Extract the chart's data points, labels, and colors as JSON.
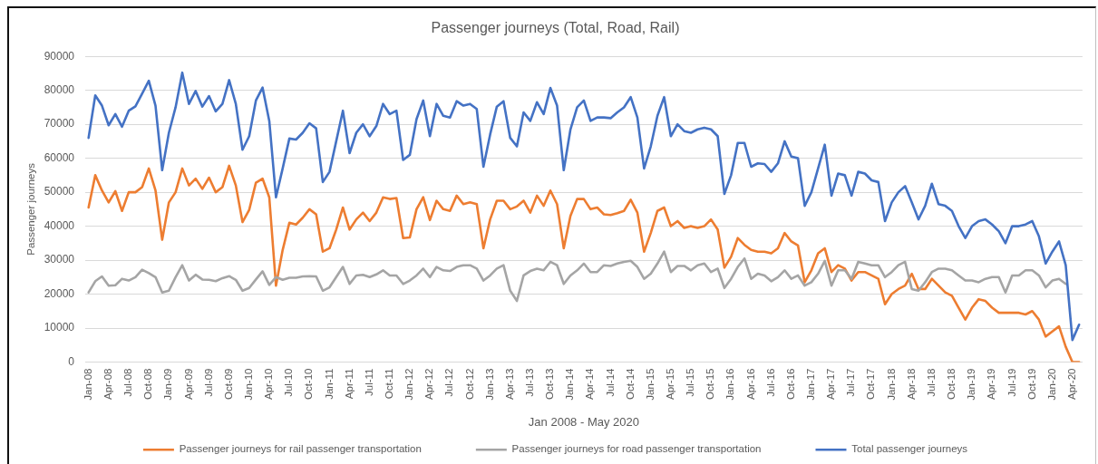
{
  "chart_data": {
    "type": "line",
    "title": "Passenger journeys (Total, Road, Rail)",
    "xlabel": "Jan 2008 - May 2020",
    "ylabel": "Passenger journeys",
    "categories": [
      "Jan-08",
      null,
      null,
      "Apr-08",
      null,
      null,
      "Jul-08",
      null,
      null,
      "Oct-08",
      null,
      null,
      "Jan-09",
      null,
      null,
      "Apr-09",
      null,
      null,
      "Jul-09",
      null,
      null,
      "Oct-09",
      null,
      null,
      "Jan-10",
      null,
      null,
      "Apr-10",
      null,
      null,
      "Jul-10",
      null,
      null,
      "Oct-10",
      null,
      null,
      "Jan-11",
      null,
      null,
      "Apr-11",
      null,
      null,
      "Jul-11",
      null,
      null,
      "Oct-11",
      null,
      null,
      "Jan-12",
      null,
      null,
      "Apr-12",
      null,
      null,
      "Jul-12",
      null,
      null,
      "Oct-12",
      null,
      null,
      "Jan-13",
      null,
      null,
      "Apr-13",
      null,
      null,
      "Jul-13",
      null,
      null,
      "Oct-13",
      null,
      null,
      "Jan-14",
      null,
      null,
      "Apr-14",
      null,
      null,
      "Jul-14",
      null,
      null,
      "Oct-14",
      null,
      null,
      "Jan-15",
      null,
      null,
      "Apr-15",
      null,
      null,
      "Jul-15",
      null,
      null,
      "Oct-15",
      null,
      null,
      "Jan-16",
      null,
      null,
      "Apr-16",
      null,
      null,
      "Jul-16",
      null,
      null,
      "Oct-16",
      null,
      null,
      "Jan-17",
      null,
      null,
      "Apr-17",
      null,
      null,
      "Jul-17",
      null,
      null,
      "Oct-17",
      null,
      null,
      "Jan-18",
      null,
      null,
      "Apr-18",
      null,
      null,
      "Jul-18",
      null,
      null,
      "Oct-18",
      null,
      null,
      "Jan-19",
      null,
      null,
      "Apr-19",
      null,
      null,
      "Jul-19",
      null,
      null,
      "Oct-19",
      null,
      null,
      "Jan-20",
      null,
      null,
      "Apr-20",
      null
    ],
    "series": [
      {
        "name": "Passenger journeys for rail passenger transportation",
        "color": "#ed7d31",
        "values": [
          45500,
          55000,
          50500,
          47000,
          50300,
          44500,
          50000,
          50000,
          51500,
          57000,
          50500,
          36000,
          47000,
          50000,
          57000,
          52000,
          54000,
          51000,
          54300,
          50000,
          51500,
          57800,
          52000,
          41200,
          44800,
          52800,
          54000,
          48500,
          22500,
          33000,
          41000,
          40500,
          42500,
          45000,
          43500,
          32500,
          33500,
          39000,
          45500,
          39000,
          42000,
          44000,
          41500,
          44000,
          48500,
          48000,
          48300,
          36500,
          36700,
          45000,
          48500,
          41800,
          47500,
          45000,
          44500,
          49000,
          46500,
          47000,
          46500,
          33500,
          42000,
          47500,
          47500,
          45000,
          45800,
          47500,
          44000,
          49000,
          46000,
          50500,
          46500,
          33500,
          43000,
          48000,
          48000,
          45000,
          45500,
          43500,
          43300,
          43800,
          44500,
          47800,
          44000,
          32500,
          38000,
          44500,
          45500,
          40000,
          41500,
          39500,
          40000,
          39500,
          40000,
          42000,
          39000,
          27800,
          31000,
          36500,
          34500,
          33000,
          32500,
          32500,
          32000,
          33500,
          38000,
          35500,
          34300,
          23500,
          27000,
          32000,
          33500,
          26500,
          28500,
          27500,
          24000,
          26500,
          26500,
          25500,
          24500,
          17000,
          20000,
          21500,
          22500,
          26000,
          21500,
          21500,
          24500,
          22500,
          20500,
          19500,
          16000,
          12500,
          16000,
          18500,
          18000,
          16000,
          14500,
          14500,
          14500,
          14500,
          14000,
          15000,
          12500,
          7500,
          9000,
          10500,
          4500,
          0,
          0
        ]
      },
      {
        "name": "Passenger journeys for road passenger transportation",
        "color": "#a5a5a5",
        "values": [
          20500,
          23800,
          25200,
          22500,
          22600,
          24500,
          24000,
          25000,
          27200,
          26200,
          25000,
          20500,
          21000,
          25000,
          28500,
          24000,
          25700,
          24300,
          24200,
          23800,
          24700,
          25300,
          24200,
          21000,
          21800,
          24300,
          26700,
          22700,
          25000,
          24200,
          24800,
          24800,
          25200,
          25300,
          25200,
          21000,
          22000,
          25000,
          28000,
          23000,
          25500,
          25700,
          25000,
          25800,
          27000,
          25500,
          25500,
          23000,
          24000,
          25500,
          27500,
          25000,
          28000,
          27000,
          26800,
          28000,
          28500,
          28500,
          27500,
          24000,
          25500,
          27500,
          28500,
          21000,
          18000,
          25500,
          26800,
          27500,
          27000,
          29500,
          28500,
          23000,
          25500,
          27000,
          29000,
          26500,
          26500,
          28500,
          28300,
          29000,
          29500,
          29800,
          28000,
          24500,
          26000,
          29000,
          32500,
          26500,
          28300,
          28300,
          27000,
          28500,
          29000,
          26500,
          27500,
          21800,
          24500,
          28000,
          30500,
          24500,
          26000,
          25500,
          23800,
          25000,
          27000,
          24500,
          25500,
          22500,
          23500,
          26000,
          29800,
          22500,
          27000,
          27000,
          24500,
          29500,
          29000,
          28500,
          28500,
          25000,
          26500,
          28500,
          29500,
          21500,
          21000,
          23500,
          26500,
          27500,
          27500,
          27000,
          25500,
          24000,
          24000,
          23500,
          24500,
          25000,
          25000,
          20500,
          25500,
          25500,
          27000,
          27000,
          25500,
          22000,
          24000,
          24500,
          23000,
          null,
          null
        ]
      },
      {
        "name": "Total passenger journeys",
        "color": "#4472c4",
        "values": [
          66000,
          78500,
          75500,
          69700,
          73000,
          69300,
          74000,
          75300,
          79000,
          82800,
          75500,
          56500,
          67500,
          75000,
          85200,
          76000,
          79800,
          75200,
          78300,
          73800,
          76000,
          83000,
          76000,
          62500,
          66500,
          77000,
          80800,
          71000,
          48500,
          57000,
          65800,
          65500,
          67500,
          70300,
          68800,
          53000,
          56000,
          65000,
          74000,
          61500,
          67500,
          70000,
          66500,
          69500,
          76000,
          73000,
          74000,
          59500,
          61000,
          71500,
          77000,
          66500,
          76000,
          72500,
          72000,
          76800,
          75500,
          76000,
          74500,
          57500,
          67000,
          75200,
          76800,
          66000,
          63500,
          73500,
          71000,
          76500,
          73000,
          80700,
          75500,
          56500,
          68500,
          75000,
          77000,
          71000,
          72000,
          72000,
          71800,
          73500,
          75000,
          78000,
          72000,
          57000,
          63500,
          72500,
          78000,
          66500,
          70000,
          68000,
          67500,
          68500,
          69000,
          68500,
          66500,
          49500,
          55000,
          64500,
          64500,
          57500,
          58500,
          58300,
          56000,
          58500,
          65000,
          60500,
          60000,
          46000,
          50000,
          57000,
          64000,
          49000,
          55500,
          55000,
          49000,
          56000,
          55500,
          53500,
          53000,
          41500,
          47000,
          50000,
          51800,
          47000,
          42000,
          46000,
          52500,
          46500,
          46000,
          44500,
          40000,
          36500,
          40000,
          41500,
          42000,
          40500,
          38500,
          35000,
          40000,
          40000,
          40500,
          41500,
          37000,
          29000,
          32500,
          35500,
          28500,
          6500,
          11000
        ]
      }
    ],
    "ylim": [
      0,
      90000
    ],
    "yticks": [
      0,
      10000,
      20000,
      30000,
      40000,
      50000,
      60000,
      70000,
      80000,
      90000
    ],
    "grid": "y",
    "legend": "bottom",
    "marker": "none",
    "line_style": "solid"
  }
}
